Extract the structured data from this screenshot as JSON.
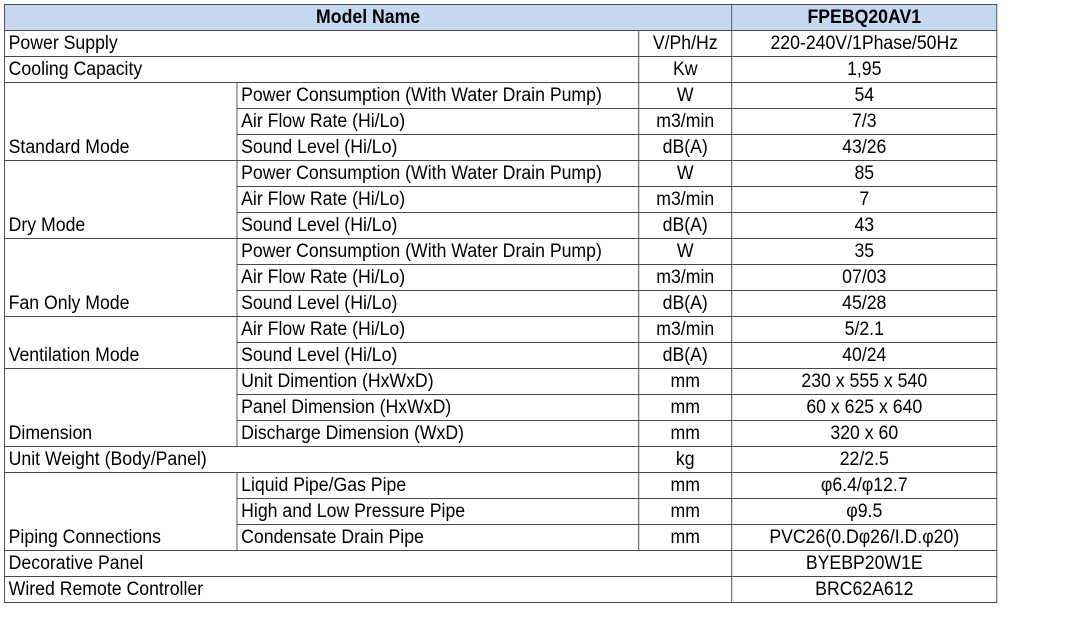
{
  "header": {
    "model_name_label": "Model Name",
    "model": "FPEBQ20AV1"
  },
  "rows": {
    "power_supply": {
      "label": "Power Supply",
      "unit": "V/Ph/Hz",
      "value": "220-240V/1Phase/50Hz"
    },
    "cooling_capacity": {
      "label": "Cooling Capacity",
      "unit": "Kw",
      "value": "1,95"
    },
    "standard_mode": {
      "label": "Standard Mode",
      "items": [
        {
          "sub": "Power Consumption (With Water Drain Pump)",
          "unit": "W",
          "value": "54"
        },
        {
          "sub": "Air Flow Rate (Hi/Lo)",
          "unit": "m3/min",
          "value": "7/3"
        },
        {
          "sub": "Sound Level (Hi/Lo)",
          "unit": "dB(A)",
          "value": "43/26"
        }
      ]
    },
    "dry_mode": {
      "label": "Dry Mode",
      "items": [
        {
          "sub": "Power Consumption (With Water Drain Pump)",
          "unit": "W",
          "value": "85"
        },
        {
          "sub": "Air Flow Rate (Hi/Lo)",
          "unit": "m3/min",
          "value": "7"
        },
        {
          "sub": "Sound Level (Hi/Lo)",
          "unit": "dB(A)",
          "value": "43"
        }
      ]
    },
    "fan_only_mode": {
      "label": "Fan Only Mode",
      "items": [
        {
          "sub": "Power Consumption (With Water Drain Pump)",
          "unit": "W",
          "value": "35"
        },
        {
          "sub": "Air Flow Rate (Hi/Lo)",
          "unit": "m3/min",
          "value": "07/03"
        },
        {
          "sub": "Sound Level (Hi/Lo)",
          "unit": "dB(A)",
          "value": "45/28"
        }
      ]
    },
    "ventilation_mode": {
      "label": "Ventilation Mode",
      "items": [
        {
          "sub": "Air Flow Rate (Hi/Lo)",
          "unit": "m3/min",
          "value": "5/2.1"
        },
        {
          "sub": "Sound Level (Hi/Lo)",
          "unit": "dB(A)",
          "value": "40/24"
        }
      ]
    },
    "dimension": {
      "label": "Dimension",
      "items": [
        {
          "sub": "Unit Dimention (HxWxD)",
          "unit": "mm",
          "value": "230 x 555 x 540"
        },
        {
          "sub": "Panel Dimension (HxWxD)",
          "unit": "mm",
          "value": "60 x 625 x 640"
        },
        {
          "sub": "Discharge Dimension (WxD)",
          "unit": "mm",
          "value": "320 x 60"
        }
      ]
    },
    "unit_weight": {
      "label": "Unit Weight (Body/Panel)",
      "unit": "kg",
      "value": "22/2.5"
    },
    "piping": {
      "label": "Piping Connections",
      "items": [
        {
          "sub": "Liquid Pipe/Gas Pipe",
          "unit": "mm",
          "value": "φ6.4/φ12.7"
        },
        {
          "sub": "High and Low Pressure Pipe",
          "unit": "mm",
          "value": "φ9.5"
        },
        {
          "sub": "Condensate Drain Pipe",
          "unit": "mm",
          "value": "PVC26(0.Dφ26/I.D.φ20)"
        }
      ]
    },
    "decorative_panel": {
      "label": "Decorative Panel",
      "value": "BYEBP20W1E"
    },
    "wired_remote": {
      "label": "Wired Remote Controller",
      "value": "BRC62A612"
    }
  }
}
